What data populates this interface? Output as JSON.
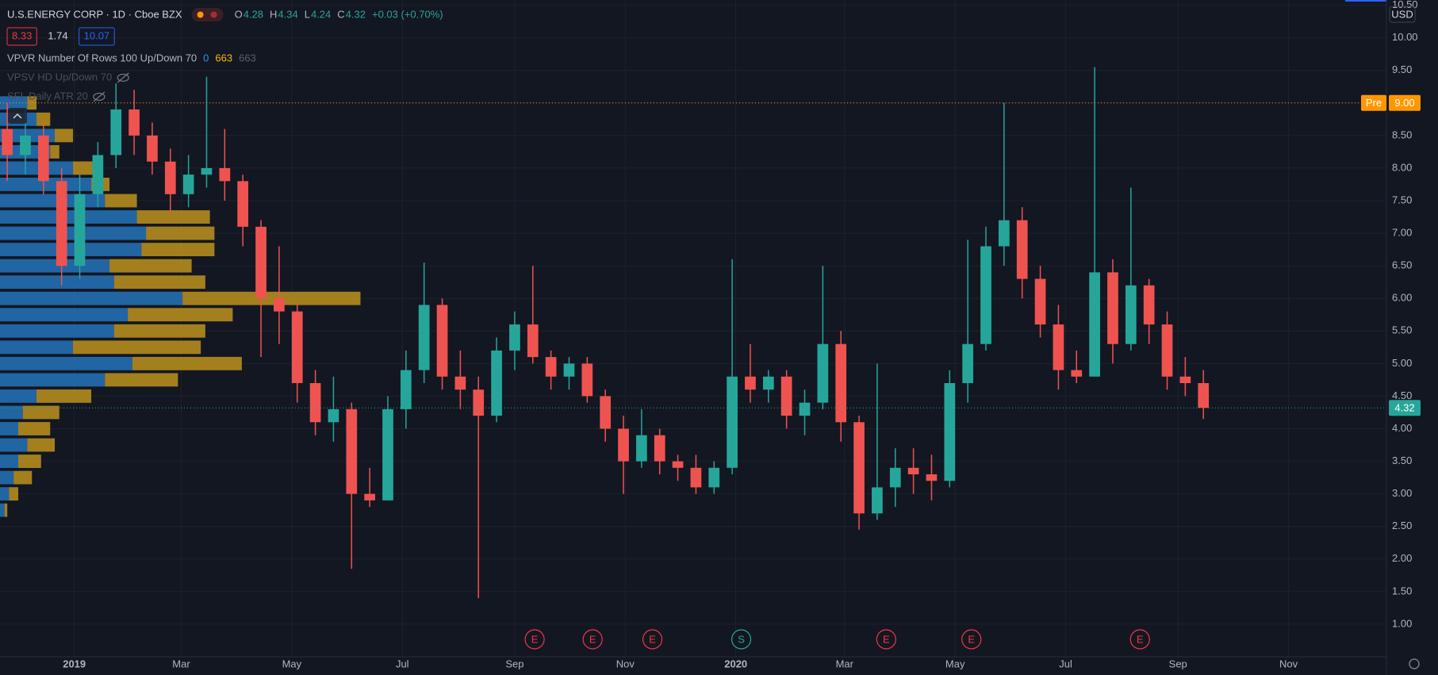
{
  "header": {
    "title": "U.S.ENERGY CORP · 1D · Cboe BZX",
    "ohlc": [
      {
        "label": "O",
        "value": 4.28
      },
      {
        "label": "H",
        "value": 4.34
      },
      {
        "label": "L",
        "value": 4.24
      },
      {
        "label": "C",
        "value": 4.32
      }
    ],
    "change": "+0.03 (+0.70%)",
    "badges": [
      {
        "value": 8.33,
        "color": "#f23645"
      },
      {
        "value": 1.74,
        "color": null
      },
      {
        "value": 10.07,
        "color": "#2962ff"
      }
    ],
    "indicators": [
      {
        "name": "VPVR Number Of Rows 100 Up/Down 70",
        "values": [
          {
            "value": 0,
            "color": "#2196f3"
          },
          {
            "value": 663,
            "color": "#f0b90b"
          },
          {
            "value": 663,
            "color": "#5d606b"
          }
        ],
        "hidden": false
      },
      {
        "name": "VPSV HD Up/Down 70",
        "values": [],
        "hidden": true
      },
      {
        "name": "SFL Daily ATR 20",
        "values": [],
        "hidden": true
      }
    ],
    "currency": "USD"
  },
  "chart_data": {
    "type": "candlestick",
    "up_color": "#26a69a",
    "down_color": "#ef5350",
    "grid": true,
    "categories": [
      null,
      null,
      null,
      null,
      null,
      null,
      null,
      null,
      null,
      null,
      null,
      null,
      null,
      null,
      null,
      null,
      null,
      null,
      null,
      null,
      null,
      null,
      null,
      null,
      null,
      null,
      null,
      null,
      null,
      null,
      null,
      null,
      null,
      null,
      null,
      null,
      null,
      null,
      null,
      null,
      null,
      null,
      null,
      null,
      null,
      null,
      null,
      null,
      null,
      null,
      null,
      null,
      null,
      null,
      null,
      null,
      null,
      null,
      null,
      null,
      null,
      null,
      null,
      null,
      null,
      null,
      null
    ],
    "open": [
      8.6,
      8.2,
      8.5,
      7.8,
      6.5,
      7.6,
      8.2,
      8.9,
      8.5,
      8.1,
      7.6,
      7.9,
      8.0,
      7.8,
      7.1,
      6.0,
      5.8,
      4.7,
      4.1,
      4.3,
      3.0,
      2.9,
      4.3,
      4.9,
      5.9,
      4.8,
      4.6,
      4.2,
      5.2,
      5.6,
      5.1,
      4.8,
      5.0,
      4.5,
      4.0,
      3.5,
      3.9,
      3.5,
      3.4,
      3.1,
      3.4,
      4.8,
      4.6,
      4.8,
      4.2,
      4.4,
      5.3,
      4.1,
      2.7,
      3.1,
      3.4,
      3.3,
      3.2,
      4.7,
      5.3,
      6.8,
      7.2,
      6.3,
      5.6,
      4.9,
      4.8,
      6.4,
      5.3,
      6.2,
      5.6,
      4.8,
      4.7
    ],
    "high": [
      9.0,
      8.9,
      8.7,
      8.0,
      7.9,
      8.4,
      9.3,
      9.2,
      8.7,
      8.3,
      8.2,
      9.4,
      8.6,
      7.9,
      7.2,
      6.8,
      5.9,
      4.9,
      4.8,
      4.4,
      3.4,
      4.5,
      5.2,
      6.55,
      6.0,
      5.2,
      4.8,
      5.4,
      5.8,
      6.5,
      5.2,
      5.1,
      5.1,
      4.6,
      4.2,
      4.3,
      4.0,
      3.6,
      3.6,
      3.5,
      6.6,
      5.3,
      4.9,
      4.9,
      4.6,
      6.5,
      5.5,
      4.2,
      5.0,
      3.7,
      3.7,
      3.6,
      4.9,
      6.9,
      7.1,
      9.0,
      7.4,
      6.5,
      5.9,
      5.2,
      9.55,
      6.6,
      7.7,
      6.3,
      5.8,
      5.1,
      4.9
    ],
    "low": [
      7.8,
      7.9,
      7.6,
      6.2,
      6.3,
      7.4,
      8.0,
      8.2,
      7.9,
      7.3,
      7.4,
      7.7,
      7.5,
      6.8,
      5.1,
      5.3,
      4.4,
      3.9,
      3.8,
      1.85,
      2.8,
      2.9,
      4.0,
      4.7,
      4.6,
      4.3,
      1.4,
      4.1,
      4.9,
      5.0,
      4.6,
      4.6,
      4.4,
      3.8,
      3.0,
      3.4,
      3.3,
      3.2,
      3.0,
      3.0,
      3.3,
      4.4,
      4.4,
      4.0,
      3.9,
      4.3,
      3.8,
      2.45,
      2.6,
      2.8,
      3.0,
      2.9,
      3.1,
      4.4,
      5.2,
      6.5,
      6.0,
      5.4,
      4.6,
      4.7,
      4.8,
      5.0,
      5.2,
      5.3,
      4.6,
      4.5,
      4.15
    ],
    "close": [
      8.2,
      8.5,
      7.8,
      6.5,
      7.6,
      8.2,
      8.9,
      8.5,
      8.1,
      7.6,
      7.9,
      8.0,
      7.8,
      7.1,
      6.0,
      5.8,
      4.7,
      4.1,
      4.3,
      3.0,
      2.9,
      4.3,
      4.9,
      5.9,
      4.8,
      4.6,
      4.2,
      5.2,
      5.6,
      5.1,
      4.8,
      5.0,
      4.5,
      4.0,
      3.5,
      3.9,
      3.5,
      3.4,
      3.1,
      3.4,
      4.8,
      4.6,
      4.8,
      4.2,
      4.4,
      5.3,
      4.1,
      2.7,
      3.1,
      3.4,
      3.3,
      3.2,
      4.7,
      5.3,
      6.8,
      7.2,
      6.3,
      5.6,
      4.9,
      4.8,
      6.4,
      5.3,
      6.2,
      5.6,
      4.8,
      4.7,
      4.32
    ],
    "xlim": [
      -0.4,
      76.1
    ],
    "xticks": [
      {
        "value": 3.7,
        "label": "2019"
      },
      {
        "value": 9.6,
        "label": "Mar"
      },
      {
        "value": 15.7,
        "label": "May"
      },
      {
        "value": 21.8,
        "label": "Jul"
      },
      {
        "value": 28.0,
        "label": "Sep"
      },
      {
        "value": 34.1,
        "label": "Nov"
      },
      {
        "value": 40.2,
        "label": "2020"
      },
      {
        "value": 46.2,
        "label": "Mar"
      },
      {
        "value": 52.3,
        "label": "May"
      },
      {
        "value": 58.4,
        "label": "Jul"
      },
      {
        "value": 64.6,
        "label": "Sep"
      },
      {
        "value": 70.7,
        "label": "Nov"
      }
    ],
    "ylim": [
      0.5,
      10.58
    ],
    "yticks": [
      {
        "value": 1,
        "label": "1.00"
      },
      {
        "value": 1.5,
        "label": "1.50"
      },
      {
        "value": 2,
        "label": "2.00"
      },
      {
        "value": 2.5,
        "label": "2.50"
      },
      {
        "value": 3,
        "label": "3.00"
      },
      {
        "value": 3.5,
        "label": "3.50"
      },
      {
        "value": 4,
        "label": "4.00"
      },
      {
        "value": 4.5,
        "label": "4.50"
      },
      {
        "value": 5,
        "label": "5.00"
      },
      {
        "value": 5.5,
        "label": "5.50"
      },
      {
        "value": 6,
        "label": "6.00"
      },
      {
        "value": 6.5,
        "label": "6.50"
      },
      {
        "value": 7,
        "label": "7.00"
      },
      {
        "value": 7.5,
        "label": "7.50"
      },
      {
        "value": 8,
        "label": "8.00"
      },
      {
        "value": 8.5,
        "label": "8.50"
      },
      {
        "value": 9,
        "label": "9.00"
      },
      {
        "value": 9.5,
        "label": "9.50"
      },
      {
        "value": 10,
        "label": "10.00"
      },
      {
        "value": 10.5,
        "label": "10.50"
      }
    ],
    "price_lines": [
      {
        "name": "Pre",
        "value": 9,
        "label": "9.00",
        "color": "#ff9800"
      },
      {
        "value": 4.32,
        "color": "#26a69a"
      }
    ],
    "events": {
      "labels": [
        "E",
        "E",
        "E",
        "S",
        "E",
        "E",
        "E"
      ],
      "x": [
        29.1,
        32.3,
        35.6,
        40.5,
        48.5,
        53.2,
        62.5
      ],
      "colors": [
        "#f23645",
        "#f23645",
        "#f23645",
        "#22ab94",
        "#f23645",
        "#f23645",
        "#f23645"
      ]
    },
    "volume_profile": {
      "up_color": "#2679c4",
      "down_color": "#c99a1e",
      "prices": [
        9.0,
        8.75,
        8.5,
        8.25,
        8.0,
        7.75,
        7.5,
        7.25,
        7.0,
        6.75,
        6.5,
        6.25,
        6.0,
        5.75,
        5.5,
        5.25,
        5.0,
        4.75,
        4.5,
        4.25,
        4.0,
        3.75,
        3.5,
        3.25,
        3.0,
        2.75
      ],
      "up": [
        30,
        40,
        60,
        55,
        80,
        100,
        115,
        150,
        160,
        155,
        120,
        125,
        200,
        140,
        125,
        80,
        145,
        115,
        40,
        25,
        20,
        30,
        20,
        15,
        10,
        5
      ],
      "down": [
        10,
        15,
        20,
        10,
        30,
        20,
        35,
        80,
        75,
        80,
        90,
        100,
        195,
        115,
        100,
        140,
        120,
        80,
        60,
        40,
        35,
        30,
        25,
        20,
        10,
        3
      ]
    }
  }
}
